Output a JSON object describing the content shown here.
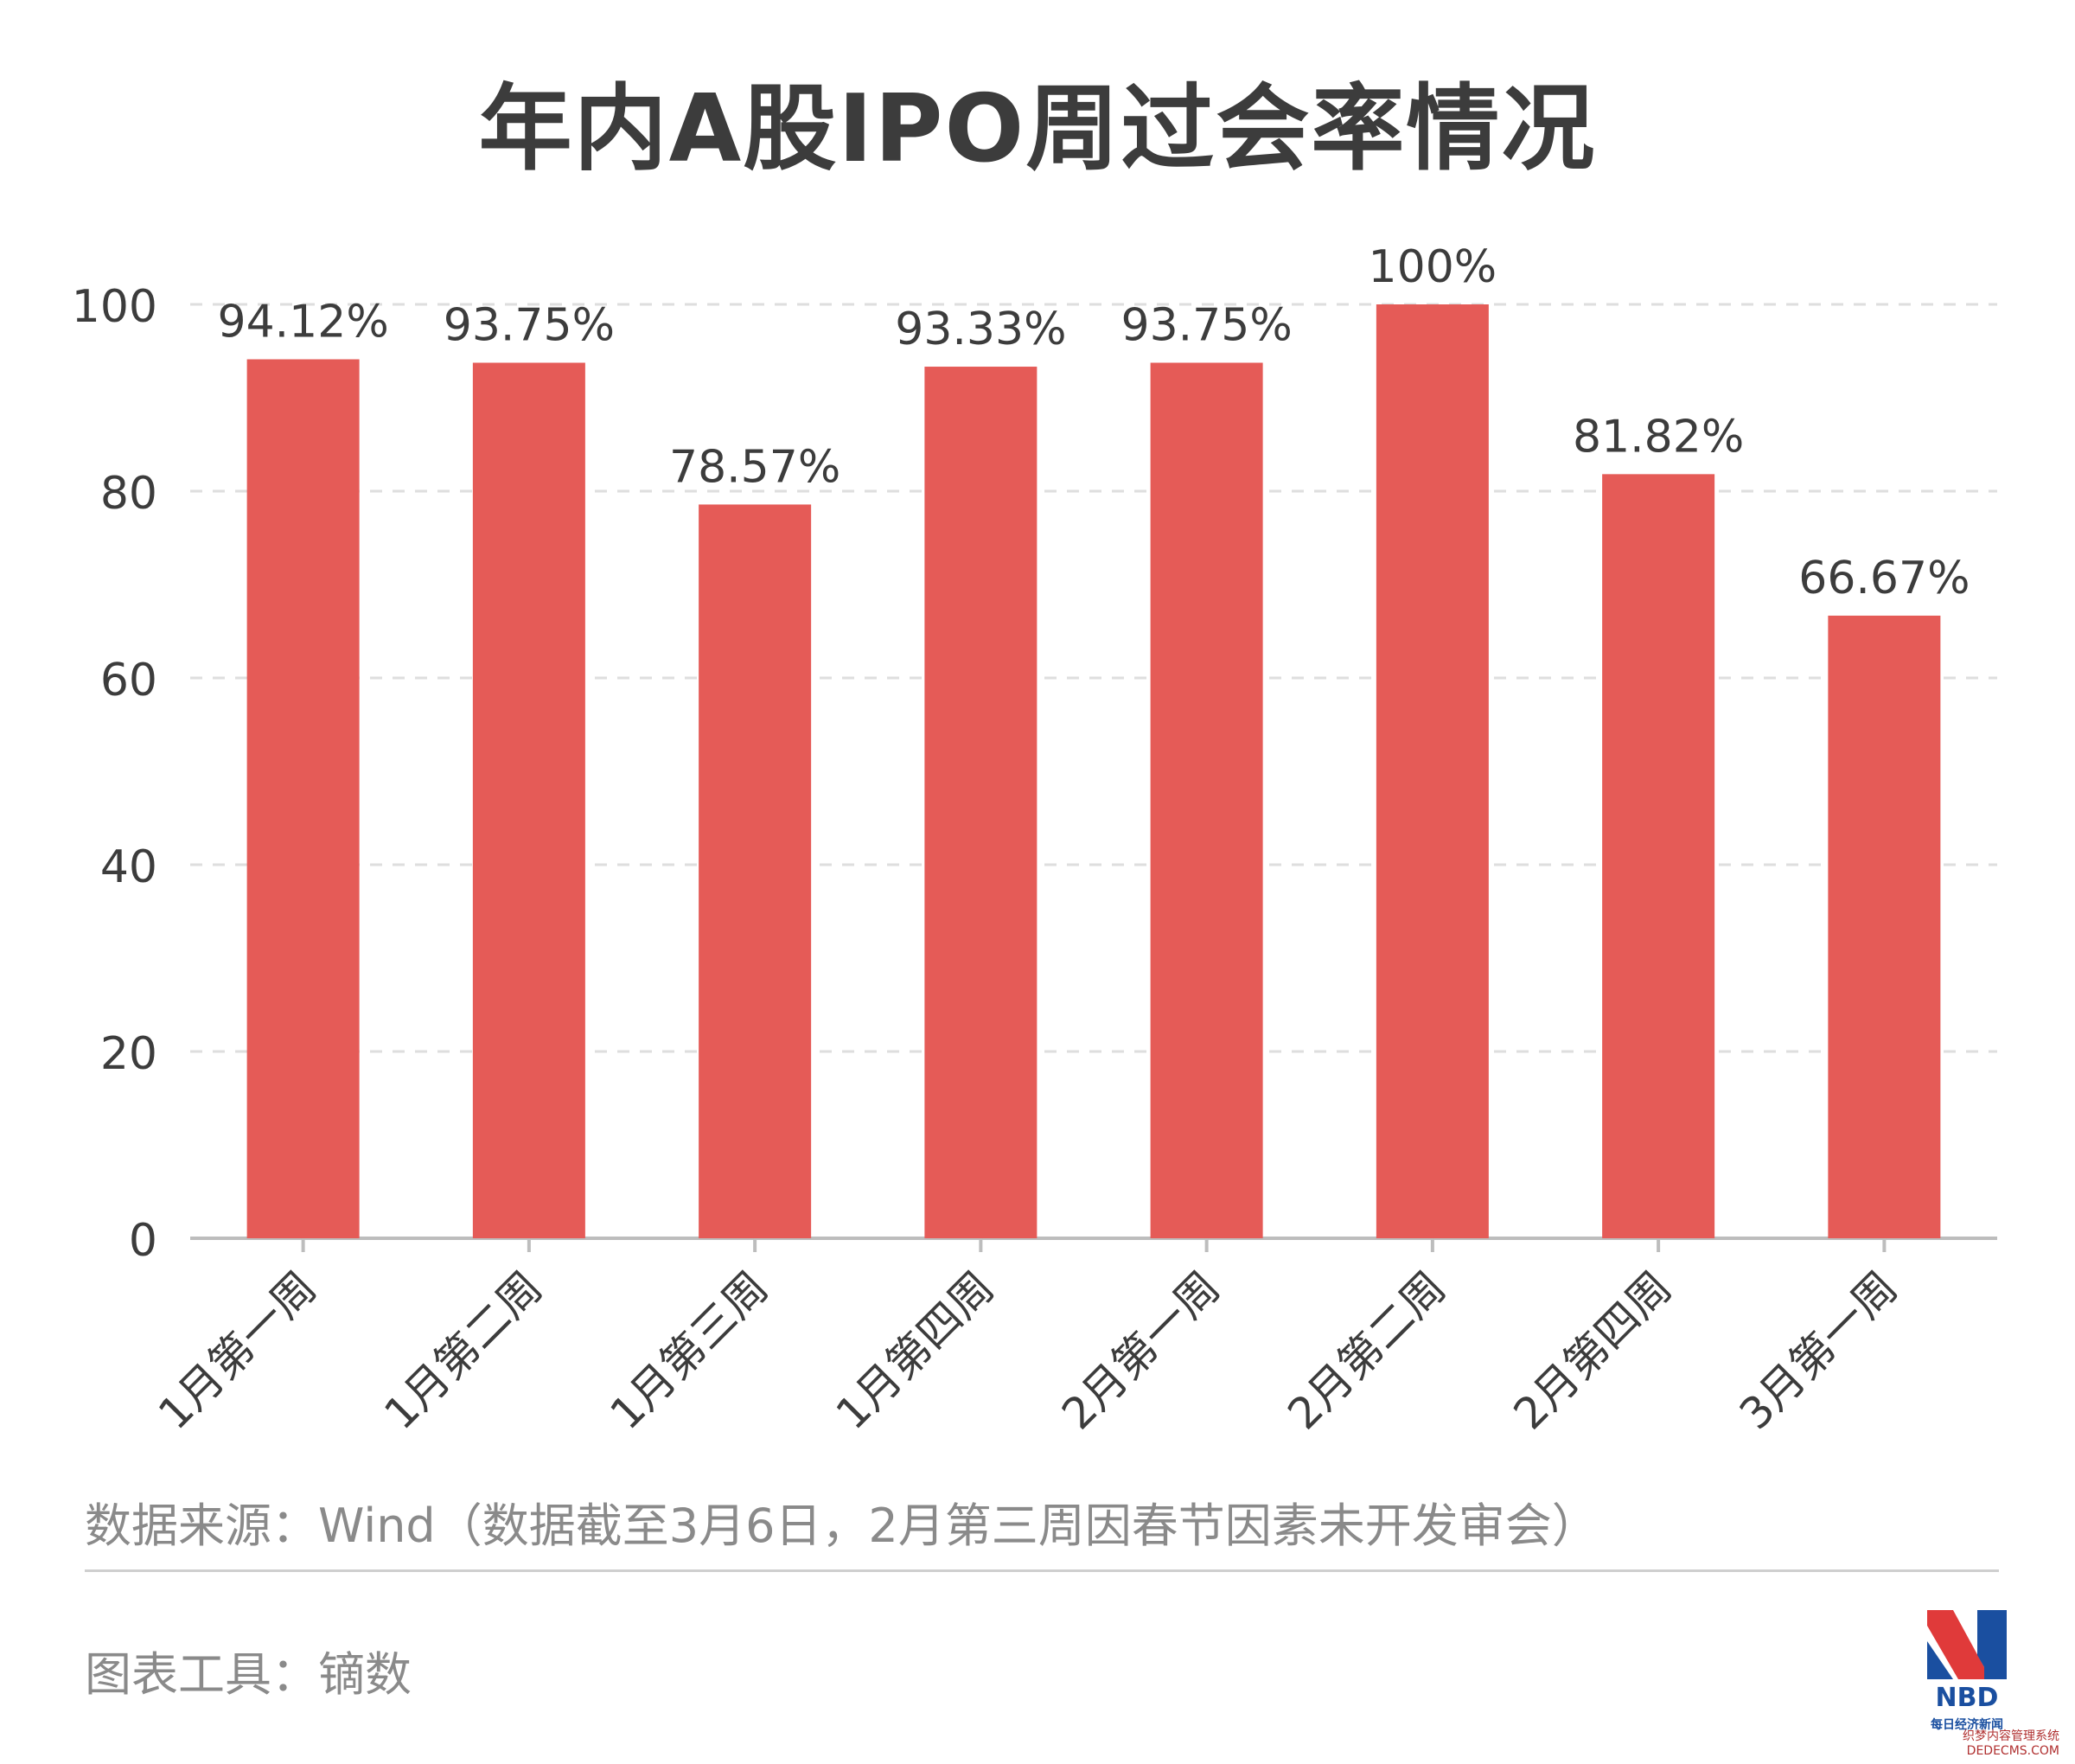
{
  "chart_data": {
    "type": "bar",
    "title": "年内A股IPO周过会率情况",
    "categories": [
      "1月第一周",
      "1月第二周",
      "1月第三周",
      "1月第四周",
      "2月第一周",
      "2月第二周",
      "2月第四周",
      "3月第一周"
    ],
    "values": [
      94.12,
      93.75,
      78.57,
      93.33,
      93.75,
      100,
      81.82,
      66.67
    ],
    "value_labels": [
      "94.12%",
      "93.75%",
      "78.57%",
      "93.33%",
      "93.75%",
      "100%",
      "81.82%",
      "66.67%"
    ],
    "ylim": [
      0,
      100
    ],
    "yticks": [
      0,
      20,
      40,
      60,
      80,
      100
    ],
    "grid": true,
    "bar_color": "#e55b57",
    "axis_color": "#bdbdbd",
    "text_color": "#3c3c3c"
  },
  "footer": {
    "source": "数据来源：Wind（数据截至3月6日，2月第三周因春节因素未开发审会）",
    "tool": "图表工具：镝数"
  },
  "logo": {
    "text": "NBD",
    "subtitle": "每日经济新闻",
    "colors": [
      "#e03a3a",
      "#1a4fa0"
    ]
  },
  "watermark": {
    "line1": "织梦内容管理系统",
    "line2": "DEDECMS.COM"
  }
}
